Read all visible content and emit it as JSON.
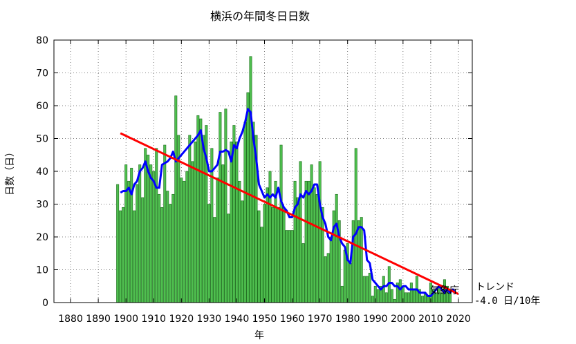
{
  "chart_data": {
    "type": "bar",
    "title": "横浜の年間冬日日数",
    "xlabel": "年",
    "ylabel": "日数（日）",
    "xlim": [
      1874,
      2025
    ],
    "ylim": [
      0,
      80
    ],
    "xticks": [
      1880,
      1890,
      1900,
      1910,
      1920,
      1930,
      1940,
      1950,
      1960,
      1970,
      1980,
      1990,
      2000,
      2010,
      2020
    ],
    "yticks": [
      0,
      10,
      20,
      30,
      40,
      50,
      60,
      70,
      80
    ],
    "grid": true,
    "colors": {
      "bar_fill": "#4fbf4f",
      "bar_edge": "#1a6a1a",
      "moving_average": "#0000ff",
      "trend": "#ff0000"
    },
    "bars": {
      "start_year": 1897,
      "values": [
        36,
        28,
        29,
        42,
        37,
        41,
        28,
        36,
        42,
        32,
        47,
        45,
        42,
        40,
        47,
        33,
        29,
        48,
        34,
        30,
        33,
        63,
        51,
        38,
        37,
        40,
        51,
        43,
        49,
        57,
        56,
        51,
        54,
        30,
        47,
        26,
        38,
        58,
        42,
        59,
        27,
        49,
        54,
        49,
        37,
        31,
        55,
        64,
        75,
        55,
        51,
        28,
        23,
        30,
        35,
        40,
        29,
        37,
        29,
        48,
        29,
        22,
        22,
        22,
        37,
        32,
        43,
        18,
        37,
        37,
        42,
        35,
        33,
        43,
        29,
        14,
        15,
        20,
        28,
        33,
        25,
        5,
        16,
        18,
        12,
        25,
        47,
        25,
        26,
        8,
        8,
        9,
        2,
        5,
        4,
        5,
        8,
        3,
        11,
        4,
        1,
        6,
        7,
        5,
        3,
        3,
        6,
        4,
        8,
        4,
        2,
        3,
        2,
        6,
        4,
        3,
        5,
        3,
        7,
        5,
        3
      ]
    },
    "moving_average": {
      "x": [
        1898,
        1899,
        1900,
        1901,
        1902,
        1903,
        1904,
        1905,
        1906,
        1907,
        1908,
        1909,
        1910,
        1911,
        1912,
        1913,
        1914,
        1915,
        1916,
        1917,
        1918,
        1919,
        1920,
        1921,
        1922,
        1923,
        1924,
        1925,
        1926,
        1927,
        1928,
        1929,
        1930,
        1931,
        1932,
        1933,
        1934,
        1935,
        1936,
        1937,
        1938,
        1939,
        1940,
        1941,
        1942,
        1943,
        1944,
        1945,
        1946,
        1947,
        1948,
        1949,
        1950,
        1951,
        1952,
        1953,
        1954,
        1955,
        1956,
        1957,
        1958,
        1959,
        1960,
        1961,
        1962,
        1963,
        1964,
        1965,
        1966,
        1967,
        1968,
        1969,
        1970,
        1971,
        1972,
        1973,
        1974,
        1975,
        1976,
        1977,
        1978,
        1979,
        1980,
        1981,
        1982,
        1983,
        1984,
        1985,
        1986,
        1987,
        1988,
        1989,
        1990,
        1991,
        1992,
        1993,
        1994,
        1995,
        1996,
        1997,
        1998,
        1999,
        2000,
        2001,
        2002,
        2003,
        2004,
        2005,
        2006,
        2007,
        2008,
        2009,
        2010,
        2011,
        2012,
        2013,
        2014,
        2015,
        2016,
        2017,
        2018,
        2019
      ],
      "y": [
        33.5,
        34,
        34,
        35,
        33,
        36,
        37,
        40,
        41,
        43,
        40,
        38,
        37,
        35,
        35,
        42,
        42.5,
        43,
        44,
        46,
        43,
        null,
        null,
        null,
        null,
        null,
        null,
        null,
        51,
        52.5,
        47,
        44,
        40,
        40,
        41,
        42,
        46,
        46,
        46.5,
        46,
        43,
        48,
        47,
        50,
        52,
        55,
        59,
        58,
        50,
        44,
        36,
        34,
        32,
        33,
        32,
        33,
        32,
        35,
        31,
        29,
        28,
        26,
        26,
        29,
        30,
        33,
        32,
        34,
        33,
        34,
        36,
        36,
        30,
        26,
        24,
        20,
        19,
        23,
        24,
        20,
        18,
        17,
        13,
        12,
        20,
        21,
        23,
        23,
        22,
        13,
        12,
        7,
        6,
        5,
        4,
        5,
        5,
        6,
        6,
        5,
        5,
        4,
        5,
        5,
        4,
        4,
        4,
        4,
        3,
        3,
        3,
        2,
        2,
        3,
        4,
        5,
        4,
        3,
        4,
        3,
        4,
        3
      ]
    },
    "trend": {
      "x": [
        1898,
        2020
      ],
      "y": [
        51.6,
        2.6
      ]
    },
    "trend_text": "トレンド",
    "trend_value_text": "-4.0 日/10年",
    "source_text": "気象庁"
  }
}
